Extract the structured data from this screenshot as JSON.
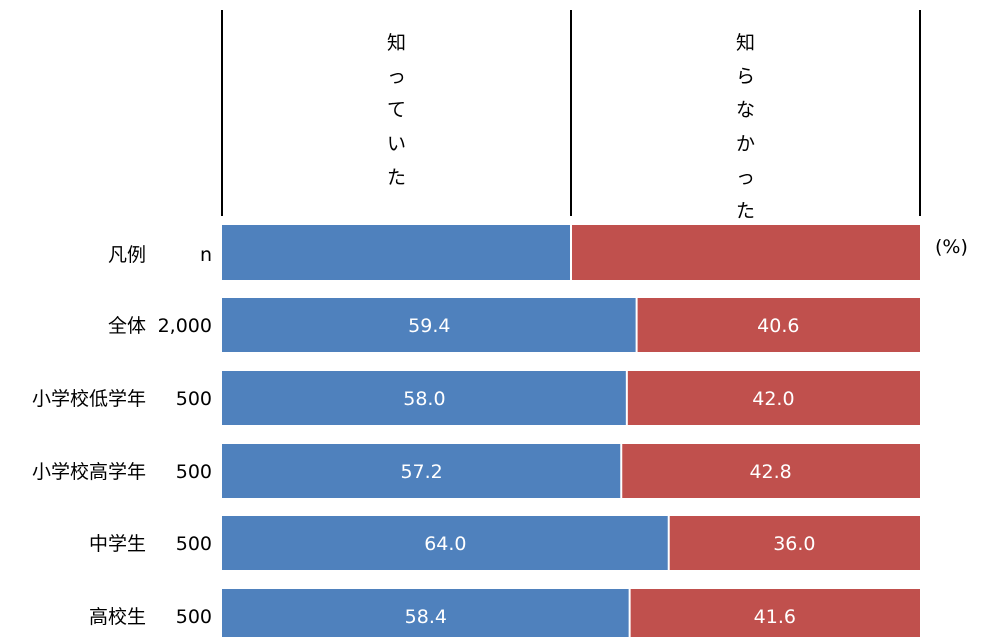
{
  "chart_data": {
    "type": "bar",
    "orientation": "horizontal-stacked-100",
    "unit": "(%)",
    "legend": {
      "row_label": "凡例",
      "n_header": "n"
    },
    "series": [
      {
        "name": "知っていた",
        "color": "#4f81bd",
        "values": [
          59.4,
          58.0,
          57.2,
          64.0,
          58.4
        ]
      },
      {
        "name": "知らなかった",
        "color": "#c0504d",
        "values": [
          40.6,
          42.0,
          42.8,
          36.0,
          41.6
        ]
      }
    ],
    "categories": [
      "全体",
      "小学校低学年",
      "小学校高学年",
      "中学生",
      "高校生"
    ],
    "n": [
      "2,000",
      "500",
      "500",
      "500",
      "500"
    ],
    "value_labels": [
      [
        "59.4",
        "58.0",
        "57.2",
        "64.0",
        "58.4"
      ],
      [
        "40.6",
        "42.0",
        "42.8",
        "36.0",
        "41.6"
      ]
    ],
    "xlim": [
      0,
      100
    ]
  }
}
